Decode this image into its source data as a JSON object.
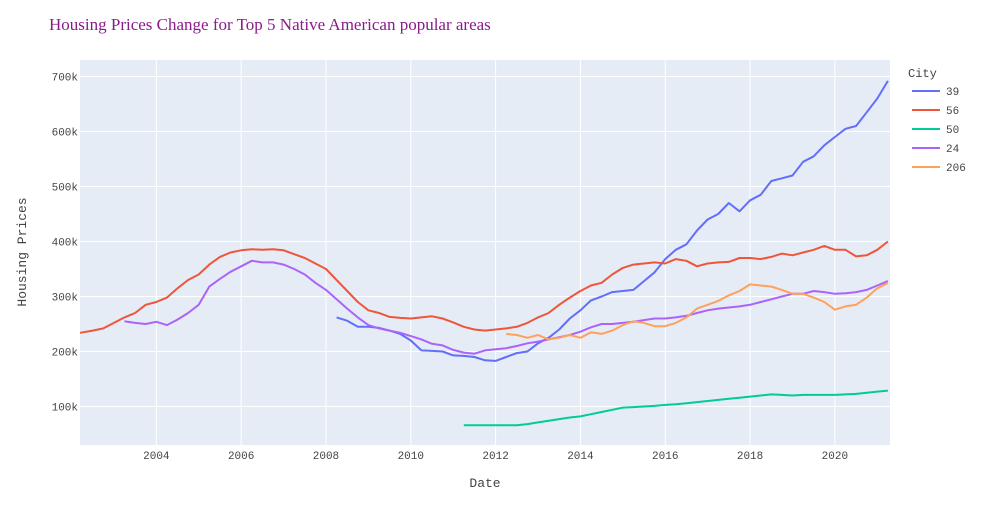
{
  "colors": {
    "plot_bg": "#e5ecf6",
    "grid": "#ffffff",
    "title": "#8b1a8b"
  },
  "chart_data": {
    "type": "line",
    "title": "Housing Prices Change for Top 5 Native American popular areas",
    "xlabel": "Date",
    "ylabel": "Housing Prices",
    "xlim": [
      2002.2,
      2021.3
    ],
    "ylim": [
      30000,
      730000
    ],
    "x_ticks": [
      2004,
      2006,
      2008,
      2010,
      2012,
      2014,
      2016,
      2018,
      2020
    ],
    "x_tick_labels": [
      "2004",
      "2006",
      "2008",
      "2010",
      "2012",
      "2014",
      "2016",
      "2018",
      "2020"
    ],
    "y_ticks": [
      100000,
      200000,
      300000,
      400000,
      500000,
      600000,
      700000
    ],
    "y_tick_labels": [
      "100k",
      "200k",
      "300k",
      "400k",
      "500k",
      "600k",
      "700k"
    ],
    "grid": true,
    "legend": {
      "title": "City",
      "position": "right"
    },
    "series": [
      {
        "name": "39",
        "color": "#636efa",
        "x": [
          2008.25,
          2008.5,
          2008.75,
          2009.0,
          2009.25,
          2009.5,
          2009.75,
          2010.0,
          2010.25,
          2010.5,
          2010.75,
          2011.0,
          2011.25,
          2011.5,
          2011.75,
          2012.0,
          2012.25,
          2012.5,
          2012.75,
          2013.0,
          2013.25,
          2013.5,
          2013.75,
          2014.0,
          2014.25,
          2014.5,
          2014.75,
          2015.0,
          2015.25,
          2015.5,
          2015.75,
          2016.0,
          2016.25,
          2016.5,
          2016.75,
          2017.0,
          2017.25,
          2017.5,
          2017.75,
          2018.0,
          2018.25,
          2018.5,
          2018.75,
          2019.0,
          2019.25,
          2019.5,
          2019.75,
          2020.0,
          2020.25,
          2020.5,
          2020.75,
          2021.0,
          2021.25
        ],
        "values": [
          262000,
          256000,
          245000,
          245000,
          243000,
          238000,
          232000,
          220000,
          202000,
          201000,
          200000,
          193000,
          192000,
          190000,
          184000,
          183000,
          190000,
          197000,
          200000,
          215000,
          225000,
          240000,
          260000,
          275000,
          293000,
          300000,
          308000,
          310000,
          312000,
          328000,
          344000,
          368000,
          385000,
          395000,
          420000,
          440000,
          450000,
          470000,
          455000,
          475000,
          485000,
          510000,
          515000,
          520000,
          545000,
          555000,
          575000,
          590000,
          605000,
          610000,
          635000,
          660000,
          692000
        ]
      },
      {
        "name": "56",
        "color": "#ef553b",
        "x": [
          2002.2,
          2002.5,
          2002.75,
          2003.0,
          2003.25,
          2003.5,
          2003.75,
          2004.0,
          2004.25,
          2004.5,
          2004.75,
          2005.0,
          2005.25,
          2005.5,
          2005.75,
          2006.0,
          2006.25,
          2006.5,
          2006.75,
          2007.0,
          2007.25,
          2007.5,
          2007.75,
          2008.0,
          2008.25,
          2008.5,
          2008.75,
          2009.0,
          2009.25,
          2009.5,
          2009.75,
          2010.0,
          2010.25,
          2010.5,
          2010.75,
          2011.0,
          2011.25,
          2011.5,
          2011.75,
          2012.0,
          2012.25,
          2012.5,
          2012.75,
          2013.0,
          2013.25,
          2013.5,
          2013.75,
          2014.0,
          2014.25,
          2014.5,
          2014.75,
          2015.0,
          2015.25,
          2015.5,
          2015.75,
          2016.0,
          2016.25,
          2016.5,
          2016.75,
          2017.0,
          2017.25,
          2017.5,
          2017.75,
          2018.0,
          2018.25,
          2018.5,
          2018.75,
          2019.0,
          2019.25,
          2019.5,
          2019.75,
          2020.0,
          2020.25,
          2020.5,
          2020.75,
          2021.0,
          2021.25
        ],
        "values": [
          234000,
          238000,
          242000,
          252000,
          262000,
          270000,
          285000,
          290000,
          298000,
          315000,
          330000,
          340000,
          358000,
          372000,
          380000,
          384000,
          386000,
          385000,
          386000,
          384000,
          377000,
          370000,
          360000,
          350000,
          330000,
          310000,
          290000,
          275000,
          270000,
          263000,
          261000,
          260000,
          262000,
          264000,
          260000,
          253000,
          245000,
          240000,
          238000,
          240000,
          242000,
          245000,
          252000,
          262000,
          270000,
          285000,
          298000,
          310000,
          320000,
          325000,
          340000,
          352000,
          358000,
          360000,
          362000,
          360000,
          368000,
          365000,
          355000,
          360000,
          362000,
          363000,
          370000,
          370000,
          368000,
          372000,
          378000,
          375000,
          380000,
          385000,
          392000,
          385000,
          385000,
          373000,
          375000,
          385000,
          400000
        ]
      },
      {
        "name": "50",
        "color": "#00cc96",
        "x": [
          2011.25,
          2011.5,
          2011.75,
          2012.0,
          2012.25,
          2012.5,
          2012.75,
          2013.0,
          2013.25,
          2013.5,
          2013.75,
          2014.0,
          2014.25,
          2014.5,
          2014.75,
          2015.0,
          2015.25,
          2015.5,
          2015.75,
          2016.0,
          2016.25,
          2016.5,
          2016.75,
          2017.0,
          2017.25,
          2017.5,
          2017.75,
          2018.0,
          2018.25,
          2018.5,
          2018.75,
          2019.0,
          2019.25,
          2019.5,
          2019.75,
          2020.0,
          2020.25,
          2020.5,
          2020.75,
          2021.0,
          2021.25
        ],
        "values": [
          66000,
          66000,
          66000,
          66000,
          66000,
          66000,
          68000,
          71000,
          74000,
          77000,
          80000,
          82000,
          86000,
          90000,
          94000,
          98000,
          99000,
          100000,
          101000,
          103000,
          104000,
          106000,
          108000,
          110000,
          112000,
          114000,
          116000,
          118000,
          120000,
          122000,
          121000,
          120000,
          121000,
          121000,
          121000,
          121000,
          122000,
          123000,
          125000,
          127000,
          129000
        ]
      },
      {
        "name": "24",
        "color": "#ab63fa",
        "x": [
          2003.25,
          2003.5,
          2003.75,
          2004.0,
          2004.25,
          2004.5,
          2004.75,
          2005.0,
          2005.25,
          2005.5,
          2005.75,
          2006.0,
          2006.25,
          2006.5,
          2006.75,
          2007.0,
          2007.25,
          2007.5,
          2007.75,
          2008.0,
          2008.25,
          2008.5,
          2008.75,
          2009.0,
          2009.25,
          2009.5,
          2009.75,
          2010.0,
          2010.25,
          2010.5,
          2010.75,
          2011.0,
          2011.25,
          2011.5,
          2011.75,
          2012.0,
          2012.25,
          2012.5,
          2012.75,
          2013.0,
          2013.25,
          2013.5,
          2013.75,
          2014.0,
          2014.25,
          2014.5,
          2014.75,
          2015.0,
          2015.25,
          2015.5,
          2015.75,
          2016.0,
          2016.25,
          2016.5,
          2016.75,
          2017.0,
          2017.25,
          2017.5,
          2017.75,
          2018.0,
          2018.25,
          2018.5,
          2018.75,
          2019.0,
          2019.25,
          2019.5,
          2019.75,
          2020.0,
          2020.25,
          2020.5,
          2020.75,
          2021.0,
          2021.25
        ],
        "values": [
          255000,
          252000,
          250000,
          254000,
          248000,
          258000,
          270000,
          285000,
          318000,
          332000,
          345000,
          355000,
          365000,
          362000,
          362000,
          358000,
          350000,
          340000,
          325000,
          312000,
          295000,
          278000,
          262000,
          248000,
          242000,
          238000,
          234000,
          228000,
          222000,
          214000,
          211000,
          203000,
          198000,
          196000,
          202000,
          204000,
          206000,
          210000,
          215000,
          218000,
          222000,
          226000,
          230000,
          236000,
          244000,
          250000,
          250000,
          252000,
          254000,
          257000,
          260000,
          260000,
          262000,
          265000,
          270000,
          275000,
          278000,
          280000,
          282000,
          285000,
          290000,
          295000,
          300000,
          305000,
          305000,
          310000,
          308000,
          305000,
          306000,
          308000,
          312000,
          320000,
          328000
        ]
      },
      {
        "name": "206",
        "color": "#ffa15a",
        "x": [
          2012.25,
          2012.5,
          2012.75,
          2013.0,
          2013.25,
          2013.5,
          2013.75,
          2014.0,
          2014.25,
          2014.5,
          2014.75,
          2015.0,
          2015.25,
          2015.5,
          2015.75,
          2016.0,
          2016.25,
          2016.5,
          2016.75,
          2017.0,
          2017.25,
          2017.5,
          2017.75,
          2018.0,
          2018.25,
          2018.5,
          2018.75,
          2019.0,
          2019.25,
          2019.5,
          2019.75,
          2020.0,
          2020.25,
          2020.5,
          2020.75,
          2021.0,
          2021.25
        ],
        "values": [
          232000,
          230000,
          225000,
          230000,
          222000,
          225000,
          230000,
          225000,
          235000,
          232000,
          238000,
          248000,
          255000,
          252000,
          246000,
          246000,
          252000,
          262000,
          278000,
          285000,
          292000,
          302000,
          310000,
          322000,
          320000,
          318000,
          312000,
          305000,
          305000,
          298000,
          290000,
          276000,
          282000,
          285000,
          298000,
          315000,
          325000
        ]
      }
    ]
  }
}
